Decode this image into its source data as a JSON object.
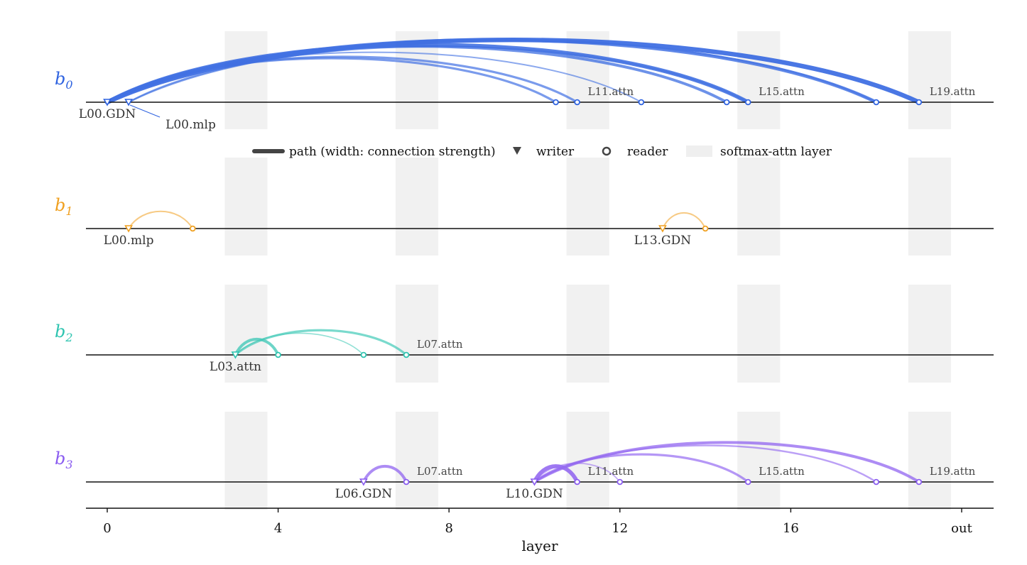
{
  "chart_data": {
    "type": "arc-diagram",
    "xlabel": "layer",
    "xlim": [
      -0.5,
      20.75
    ],
    "x_ticks": [
      {
        "value": 0,
        "label": "0"
      },
      {
        "value": 4,
        "label": "4"
      },
      {
        "value": 8,
        "label": "8"
      },
      {
        "value": 12,
        "label": "12"
      },
      {
        "value": 16,
        "label": "16"
      },
      {
        "value": 20,
        "label": "out"
      }
    ],
    "softmax_attn_layers": [
      3.25,
      7.25,
      11.25,
      15.25,
      19.25
    ],
    "legend": {
      "path": "path (width: connection strength)",
      "writer": "writer",
      "reader": "reader",
      "shaded": "softmax-attn layer"
    },
    "rows": [
      {
        "label": "b",
        "sub": "0",
        "color": "#2f63e0",
        "arcs": [
          {
            "from": 0,
            "to": 19,
            "weight": 8
          },
          {
            "from": 0,
            "to": 15,
            "weight": 7
          },
          {
            "from": 0,
            "to": 18,
            "weight": 6
          },
          {
            "from": 0,
            "to": 14.5,
            "weight": 5
          },
          {
            "from": 0,
            "to": 11,
            "weight": 4
          },
          {
            "from": 0,
            "to": 10.5,
            "weight": 4
          },
          {
            "from": 0,
            "to": 12.5,
            "weight": 2.5
          },
          {
            "from": 0.5,
            "to": 18,
            "weight": 3
          },
          {
            "from": 0.5,
            "to": 15,
            "weight": 3
          }
        ],
        "writers": [
          0,
          0.5
        ],
        "readers": [
          10.5,
          11,
          12.5,
          14.5,
          15,
          18,
          19
        ],
        "labels": [
          {
            "text": "L00.GDN",
            "x": 0,
            "pos": "below"
          },
          {
            "text": "L00.mlp",
            "x": 0.5,
            "pos": "below-right"
          },
          {
            "text": "L11.attn",
            "x": 11,
            "pos": "above"
          },
          {
            "text": "L15.attn",
            "x": 15,
            "pos": "above"
          },
          {
            "text": "L19.attn",
            "x": 19,
            "pos": "above"
          }
        ]
      },
      {
        "label": "b",
        "sub": "1",
        "color": "#f0a020",
        "arcs": [
          {
            "from": 0.5,
            "to": 2,
            "weight": 2.5
          },
          {
            "from": 13,
            "to": 14,
            "weight": 2.5
          }
        ],
        "writers": [
          0.5,
          13
        ],
        "readers": [
          2,
          14
        ],
        "labels": [
          {
            "text": "L00.mlp",
            "x": 0.5,
            "pos": "below"
          },
          {
            "text": "L13.GDN",
            "x": 13,
            "pos": "below"
          }
        ]
      },
      {
        "label": "b",
        "sub": "2",
        "color": "#2ec4b0",
        "arcs": [
          {
            "from": 3,
            "to": 7,
            "weight": 4
          },
          {
            "from": 3,
            "to": 4,
            "weight": 5
          },
          {
            "from": 3,
            "to": 6,
            "weight": 2
          }
        ],
        "writers": [
          3
        ],
        "readers": [
          4,
          6,
          7
        ],
        "labels": [
          {
            "text": "L03.attn",
            "x": 3,
            "pos": "below"
          },
          {
            "text": "L07.attn",
            "x": 7,
            "pos": "above"
          }
        ]
      },
      {
        "label": "b",
        "sub": "3",
        "color": "#8a5cf0",
        "arcs": [
          {
            "from": 6,
            "to": 7,
            "weight": 5
          },
          {
            "from": 10,
            "to": 11,
            "weight": 7
          },
          {
            "from": 10,
            "to": 19,
            "weight": 5
          },
          {
            "from": 10,
            "to": 15,
            "weight": 4
          },
          {
            "from": 10,
            "to": 18,
            "weight": 3
          },
          {
            "from": 10,
            "to": 12,
            "weight": 2
          }
        ],
        "writers": [
          6,
          10
        ],
        "readers": [
          7,
          11,
          12,
          15,
          18,
          19
        ],
        "labels": [
          {
            "text": "L06.GDN",
            "x": 6,
            "pos": "below"
          },
          {
            "text": "L07.attn",
            "x": 7,
            "pos": "above"
          },
          {
            "text": "L10.GDN",
            "x": 10,
            "pos": "below"
          },
          {
            "text": "L11.attn",
            "x": 11,
            "pos": "above"
          },
          {
            "text": "L15.attn",
            "x": 15,
            "pos": "above"
          },
          {
            "text": "L19.attn",
            "x": 19,
            "pos": "above"
          }
        ]
      }
    ]
  }
}
